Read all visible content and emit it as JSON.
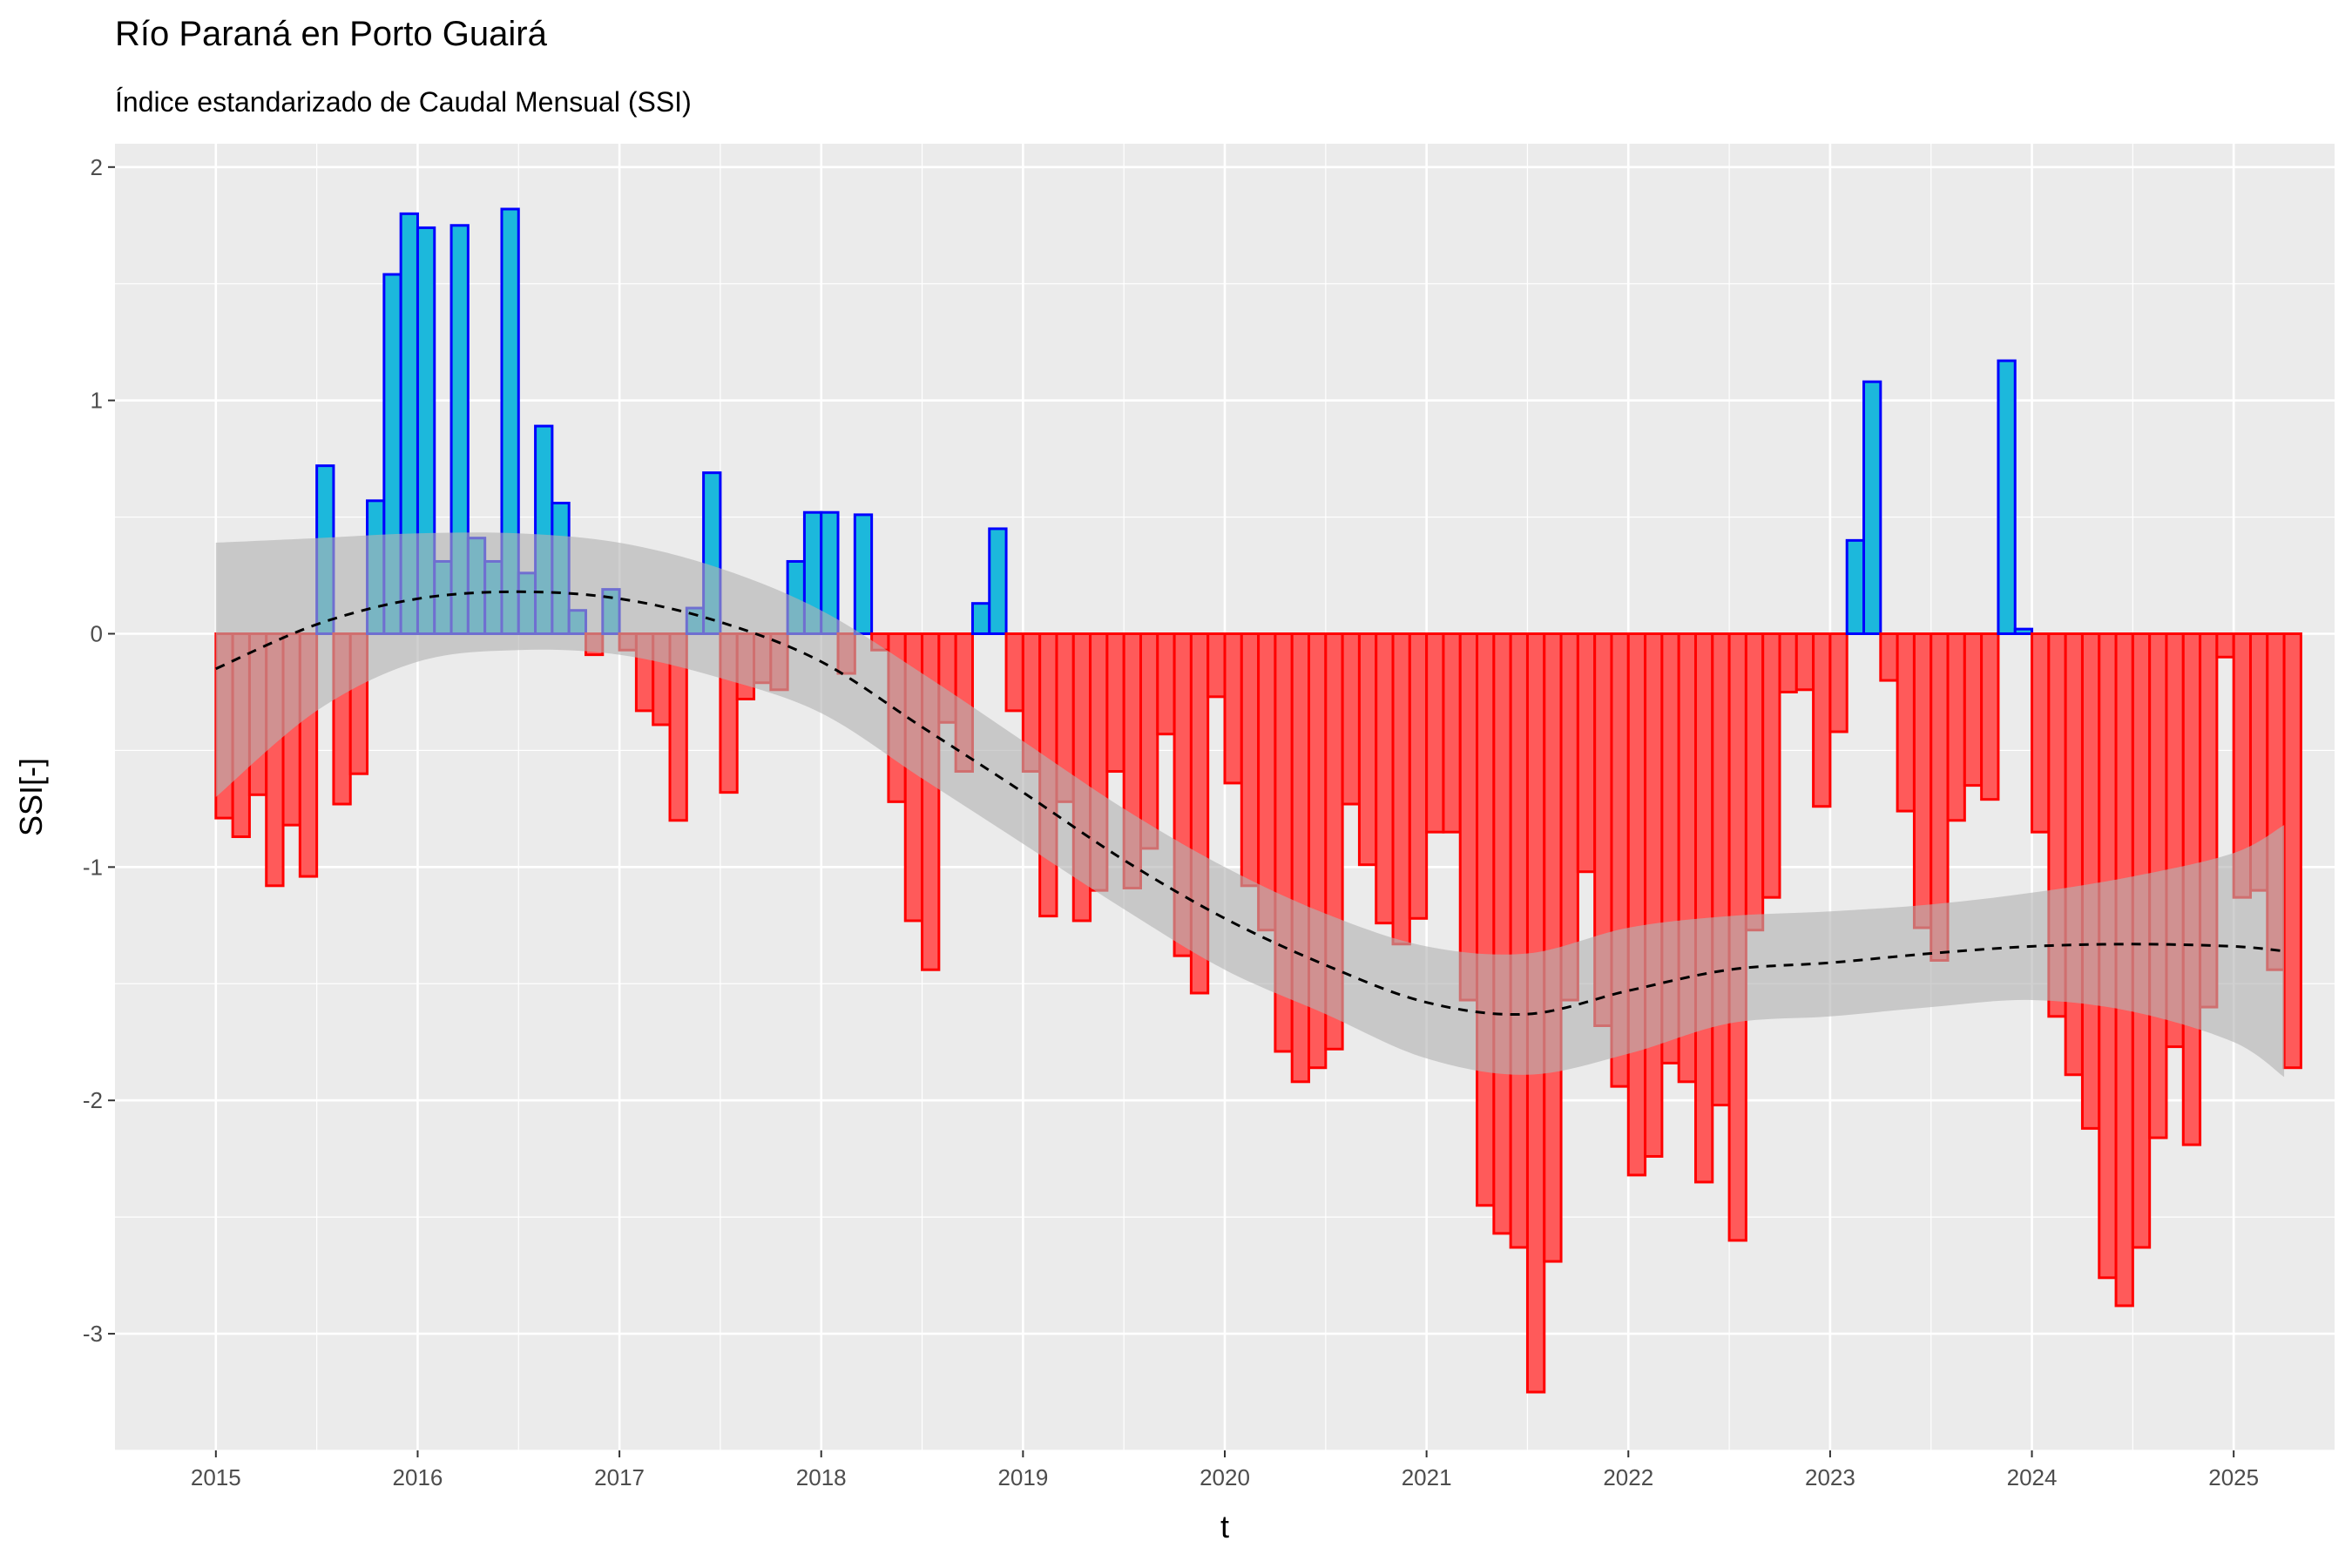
{
  "chart_data": {
    "type": "bar",
    "title": "Río Paraná en Porto Guairá",
    "subtitle": "Índice estandarizado de Caudal Mensual (SSI)",
    "xlabel": "t",
    "ylabel": "SSI[-]",
    "xlim": [
      "2014-07",
      "2025-07"
    ],
    "ylim": [
      -3.5,
      2.1
    ],
    "grid": true,
    "x_ticks": [
      "2015",
      "2016",
      "2017",
      "2018",
      "2019",
      "2020",
      "2021",
      "2022",
      "2023",
      "2024",
      "2025"
    ],
    "y_ticks": [
      2,
      1,
      0,
      -1,
      -2,
      -3
    ],
    "y_tick_labels": [
      "2",
      "1",
      "0",
      "-1",
      "-2",
      "-3"
    ],
    "start_month": "2015-01",
    "values": [
      -0.79,
      -0.87,
      -0.69,
      -1.08,
      -0.82,
      -1.04,
      0.72,
      -0.73,
      -0.6,
      0.57,
      1.54,
      1.8,
      1.74,
      0.31,
      1.75,
      0.41,
      0.31,
      1.82,
      0.26,
      0.89,
      0.56,
      0.1,
      -0.09,
      0.19,
      -0.07,
      -0.33,
      -0.39,
      -0.8,
      0.11,
      0.69,
      -0.68,
      -0.28,
      -0.21,
      -0.24,
      0.31,
      0.52,
      0.52,
      -0.17,
      0.51,
      -0.07,
      -0.72,
      -1.23,
      -1.44,
      -0.38,
      -0.59,
      0.13,
      0.45,
      -0.33,
      -0.59,
      -1.21,
      -0.72,
      -1.23,
      -1.1,
      -0.59,
      -1.09,
      -0.92,
      -0.43,
      -1.38,
      -1.54,
      -0.27,
      -0.64,
      -1.08,
      -1.27,
      -1.79,
      -1.92,
      -1.86,
      -1.78,
      -0.73,
      -0.99,
      -1.24,
      -1.33,
      -1.22,
      -0.85,
      -0.85,
      -1.57,
      -2.45,
      -2.57,
      -2.63,
      -3.25,
      -2.69,
      -1.57,
      -1.02,
      -1.68,
      -1.94,
      -2.32,
      -2.24,
      -1.84,
      -1.92,
      -2.35,
      -2.02,
      -2.6,
      -1.27,
      -1.13,
      -0.25,
      -0.24,
      -0.74,
      -0.42,
      0.4,
      1.08,
      -0.2,
      -0.76,
      -1.26,
      -1.4,
      -0.8,
      -0.65,
      -0.71,
      1.17,
      0.02,
      -0.85,
      -1.64,
      -1.89,
      -2.12,
      -2.76,
      -2.88,
      -2.63,
      -2.16,
      -1.77,
      -2.19,
      -1.6,
      -0.1,
      -1.13,
      -1.1,
      -1.44,
      -1.86
    ],
    "colors": {
      "positive_fill": "#1cb8dc",
      "positive_border": "#0000ff",
      "negative_fill": "#ff5a5a",
      "negative_border": "#ff0000",
      "trend_line": "#000000",
      "confidence_band": "#b3b3b3",
      "panel_background": "#ebebeb"
    },
    "trend": {
      "style": "dashed",
      "x": [
        "2015-01",
        "2015-07",
        "2016-01",
        "2016-07",
        "2017-01",
        "2017-07",
        "2018-01",
        "2018-07",
        "2019-01",
        "2019-07",
        "2020-01",
        "2020-07",
        "2021-01",
        "2021-07",
        "2022-01",
        "2022-07",
        "2023-01",
        "2023-07",
        "2024-01",
        "2024-07",
        "2025-01",
        "2025-04"
      ],
      "y": [
        -0.15,
        0.04,
        0.15,
        0.18,
        0.15,
        0.05,
        -0.12,
        -0.4,
        -0.68,
        -0.97,
        -1.22,
        -1.42,
        -1.58,
        -1.63,
        -1.53,
        -1.44,
        -1.41,
        -1.37,
        -1.34,
        -1.33,
        -1.34,
        -1.36
      ],
      "upper": [
        0.39,
        0.41,
        0.43,
        0.43,
        0.39,
        0.28,
        0.1,
        -0.17,
        -0.46,
        -0.75,
        -1.0,
        -1.2,
        -1.34,
        -1.37,
        -1.26,
        -1.21,
        -1.19,
        -1.16,
        -1.11,
        -1.04,
        -0.94,
        -0.82
      ],
      "lower": [
        -0.7,
        -0.33,
        -0.12,
        -0.07,
        -0.09,
        -0.19,
        -0.34,
        -0.62,
        -0.9,
        -1.18,
        -1.44,
        -1.63,
        -1.82,
        -1.89,
        -1.8,
        -1.67,
        -1.64,
        -1.6,
        -1.57,
        -1.62,
        -1.75,
        -1.9
      ]
    }
  }
}
